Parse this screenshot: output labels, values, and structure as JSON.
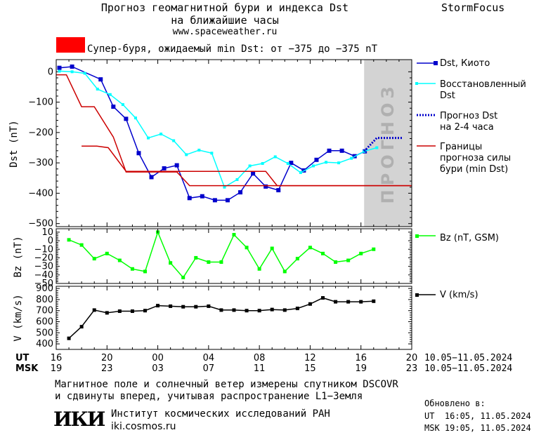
{
  "header": {
    "title_line1": "Прогноз геомагнитной бури и индекса Dst",
    "title_line2": "на ближайшие часы",
    "website": "www.spaceweather.ru",
    "brand": "StormFocus"
  },
  "storm_banner": {
    "text": "Супер-буря, ожидаемый min Dst: от −375 до −375 nT",
    "color": "#ff0000"
  },
  "forecast_zone_label": "ПРОГНОЗ",
  "colors": {
    "dst_kyoto": "#0000cc",
    "dst_restored": "#00ffff",
    "dst_forecast": "#0000cc",
    "storm_bounds": "#cc0000",
    "bz": "#00ff00",
    "v": "#000000",
    "forecast_zone": "#d3d3d3"
  },
  "chart_data": [
    {
      "type": "line",
      "name": "dst",
      "ylabel": "Dst (nT)",
      "ylim": [
        -510,
        40
      ],
      "yticks": [
        0,
        -100,
        -200,
        -300,
        -400,
        -500
      ],
      "ytick_labels": [
        "0",
        "−100",
        "−200",
        "−300",
        "−400",
        "−500"
      ],
      "x_unit": "hours from 16 UT 10.05.2024",
      "xlim": [
        0,
        28
      ],
      "forecast_zone": [
        24.25,
        28
      ],
      "series": [
        {
          "name": "Dst, Киото",
          "marker": "square",
          "x": [
            0.25,
            1.25,
            3.5,
            4.5,
            5.5,
            6.5,
            7.5,
            8.5,
            9.5,
            10.5,
            11.5,
            12.5,
            13.5,
            14.5,
            15.5,
            16.5,
            17.5,
            18.5,
            19.5,
            20.5,
            21.5,
            22.5,
            23.5,
            24.3
          ],
          "y": [
            13,
            17,
            -25,
            -115,
            -155,
            -268,
            -347,
            -318,
            -308,
            -416,
            -410,
            -423,
            -423,
            -397,
            -335,
            -378,
            -390,
            -300,
            -325,
            -290,
            -260,
            -260,
            -278,
            -262
          ]
        },
        {
          "name": "Восстановленный Dst",
          "marker": "small-square",
          "x": [
            0.25,
            1.25,
            2.25,
            3.25,
            4.25,
            5.25,
            6.25,
            7.25,
            8.25,
            9.25,
            10.25,
            11.25,
            12.25,
            13.25,
            14.25,
            15.25,
            16.25,
            17.25,
            18.25,
            19.25,
            20.25,
            21.25,
            22.25,
            23.25,
            24.25,
            25.25
          ],
          "y": [
            2,
            0,
            -5,
            -57,
            -75,
            -108,
            -152,
            -218,
            -205,
            -227,
            -273,
            -258,
            -268,
            -380,
            -355,
            -310,
            -302,
            -280,
            -302,
            -332,
            -310,
            -298,
            -300,
            -285,
            -262,
            -250
          ]
        },
        {
          "name": "Прогноз Dst на 2-4 часа",
          "style": "dotted",
          "x": [
            24.25,
            25.25,
            26.25,
            27.25
          ],
          "y": [
            -262,
            -218,
            -218,
            -218
          ]
        },
        {
          "name": "Границы прогноза силы бури (min Dst)",
          "x": [
            0,
            0.8,
            2,
            3,
            4.5,
            5.5,
            7.3,
            8.3,
            9.5,
            10.5,
            24.25,
            28
          ],
          "y": [
            -10,
            -10,
            -115,
            -115,
            -215,
            -330,
            -330,
            -330,
            -330,
            -375,
            -375,
            -375
          ]
        },
        {
          "name": "Границы прогноза силы бури (min Dst), upper",
          "x": [
            2,
            3.2,
            4.1,
            5.5,
            16.5,
            17.4,
            24.25,
            28
          ],
          "y": [
            -245,
            -245,
            -250,
            -328,
            -328,
            -375,
            -375,
            -375
          ]
        }
      ]
    },
    {
      "type": "line",
      "name": "bz",
      "ylabel": "Bz (nT)",
      "ylim": [
        -50,
        14
      ],
      "yticks": [
        10,
        0,
        -10,
        -20,
        -30,
        -40,
        -50
      ],
      "ytick_labels": [
        "10",
        "0",
        "−10",
        "−20",
        "−30",
        "−40",
        "−50"
      ],
      "xlim": [
        0,
        28
      ],
      "series": [
        {
          "name": "Bz (nT, GSM)",
          "x": [
            1,
            2,
            3,
            4,
            5,
            6,
            7,
            8,
            9,
            10,
            11,
            12,
            13,
            14,
            15,
            16,
            17,
            18,
            19,
            20,
            21,
            22,
            23,
            24,
            25
          ],
          "y": [
            1,
            -5,
            -21,
            -15,
            -23,
            -33,
            -36,
            10,
            -26,
            -43,
            -20,
            -25,
            -25,
            7,
            -8,
            -33,
            -9,
            -36,
            -21,
            -8,
            -15,
            -25,
            -23,
            -15,
            -10
          ]
        }
      ]
    },
    {
      "type": "line",
      "name": "v",
      "ylabel": "V (km/s)",
      "ylim": [
        350,
        920
      ],
      "yticks": [
        900,
        800,
        700,
        600,
        500,
        400
      ],
      "ytick_labels": [
        "900",
        "800",
        "700",
        "600",
        "500",
        "400"
      ],
      "xlim": [
        0,
        28
      ],
      "series": [
        {
          "name": "V (km/s)",
          "x": [
            1,
            2,
            3,
            4,
            5,
            6,
            7,
            8,
            9,
            10,
            11,
            12,
            13,
            14,
            15,
            16,
            17,
            18,
            19,
            20,
            21,
            22,
            23,
            24,
            25
          ],
          "y": [
            450,
            555,
            705,
            680,
            695,
            695,
            700,
            745,
            740,
            735,
            735,
            740,
            705,
            705,
            700,
            700,
            710,
            705,
            720,
            760,
            815,
            780,
            780,
            780,
            785
          ]
        }
      ]
    }
  ],
  "x_axis": {
    "ut_label": "UT",
    "msk_label": "MSK",
    "ut_ticks": [
      "16",
      "20",
      "00",
      "04",
      "08",
      "12",
      "16",
      "20"
    ],
    "msk_ticks": [
      "19",
      "23",
      "03",
      "07",
      "11",
      "15",
      "19",
      "23"
    ],
    "tick_hours": [
      0,
      4,
      8,
      12,
      16,
      20,
      24,
      28
    ],
    "date_range": "10.05−11.05.2024"
  },
  "footer": {
    "note_line1": "Магнитное поле и солнечный ветер измерены спутником DSCOVR",
    "note_line2": "и сдвинуты вперед, учитывая распространение L1−Земля",
    "institute": "Институт космических исследований РАН",
    "institute_site": "iki.cosmos.ru",
    "logo_text": "ИКИ",
    "updated_label": "Обновлено в:",
    "updated_ut": "UT  16:05, 11.05.2024",
    "updated_msk": "MSK 19:05, 11.05.2024"
  },
  "legend": {
    "dst_kyoto": "Dst, Киото",
    "restored_1": "Восстановленный",
    "restored_2": "Dst",
    "forecast_1": "Прогноз Dst",
    "forecast_2": "на 2-4 часа",
    "bounds_1": "Границы",
    "bounds_2": "прогноза силы",
    "bounds_3": "бури (min Dst)",
    "bz": "Bz (nT, GSM)",
    "v": "V (km/s)"
  }
}
